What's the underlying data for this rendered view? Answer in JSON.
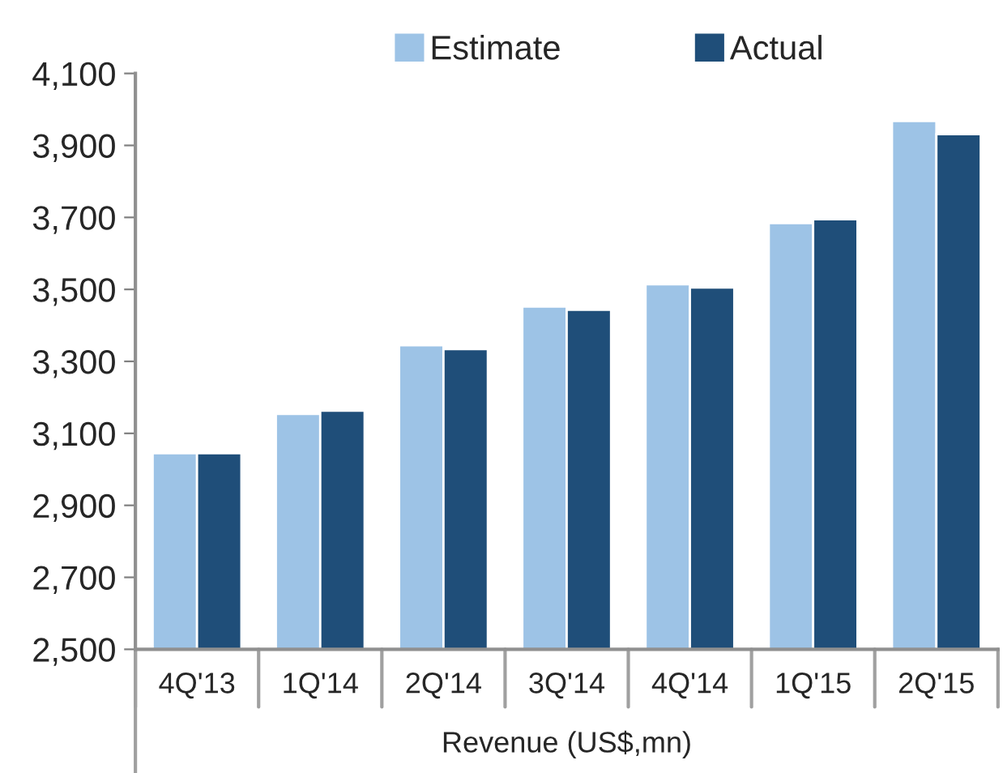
{
  "chart_data": {
    "type": "bar",
    "xlabel": "Revenue (US$,mn)",
    "categories": [
      "4Q'13",
      "1Q'14",
      "2Q'14",
      "3Q'14",
      "4Q'14",
      "1Q'15",
      "2Q'15"
    ],
    "series": [
      {
        "name": "Estimate",
        "color": "#9dc3e6",
        "values": [
          3045,
          3154,
          3345,
          3452,
          3514,
          3684,
          3968
        ]
      },
      {
        "name": "Actual",
        "color": "#1f4e79",
        "values": [
          3045,
          3163,
          3334,
          3443,
          3505,
          3695,
          3931
        ]
      }
    ],
    "ylim": [
      2500,
      4100
    ],
    "yticks": [
      {
        "value": 2500,
        "label": "2,500"
      },
      {
        "value": 2700,
        "label": "2,700"
      },
      {
        "value": 2900,
        "label": "2,900"
      },
      {
        "value": 3100,
        "label": "3,100"
      },
      {
        "value": 3300,
        "label": "3,300"
      },
      {
        "value": 3500,
        "label": "3,500"
      },
      {
        "value": 3700,
        "label": "3,700"
      },
      {
        "value": 3900,
        "label": "3,900"
      },
      {
        "value": 4100,
        "label": "4,100"
      }
    ],
    "grid": false,
    "legend": "top"
  }
}
